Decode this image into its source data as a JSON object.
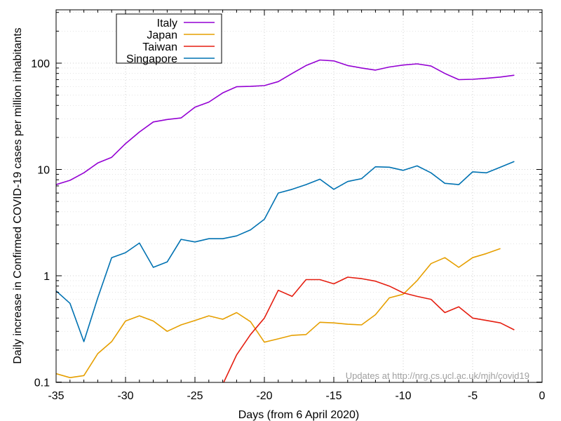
{
  "chart_data": {
    "type": "line",
    "title": "",
    "xlabel": "Days (from 6 April 2020)",
    "ylabel": "Daily increase in Confirmed COVID-19 cases per million inhabitants",
    "xlim": [
      -35,
      0
    ],
    "ylim": [
      0.1,
      300
    ],
    "yscale": "log",
    "grid": true,
    "legend_position": "top-left",
    "xticks": [
      "-35",
      "-30",
      "-25",
      "-20",
      "-15",
      "-10",
      "-5",
      "0"
    ],
    "yticks": [
      "0.1",
      "1",
      "10",
      "100"
    ],
    "annotation": "Updates at http://nrg.cs.ucl.ac.uk/mjh/covid19",
    "series": [
      {
        "name": "Italy",
        "color": "#9400d3",
        "x": [
          -35,
          -34,
          -33,
          -32,
          -31,
          -30,
          -29,
          -28,
          -27,
          -26,
          -25,
          -24,
          -23,
          -22,
          -21,
          -20,
          -19,
          -18,
          -17,
          -16,
          -15,
          -14,
          -13,
          -12,
          -11,
          -10,
          -9,
          -8,
          -7,
          -6,
          -5,
          -4,
          -3,
          -2
        ],
        "y": [
          7.2,
          7.9,
          9.3,
          11.5,
          13.0,
          17.5,
          22.5,
          28.0,
          29.5,
          30.5,
          38.5,
          43.0,
          52.5,
          60.0,
          60.5,
          61.5,
          67.0,
          80.0,
          95.0,
          107.0,
          105.0,
          95.0,
          90.0,
          86.0,
          92.0,
          96.0,
          98.5,
          94.0,
          80.0,
          70.0,
          70.5,
          72.0,
          74.0,
          77.0
        ]
      },
      {
        "name": "Japan",
        "color": "#e69f00",
        "x": [
          -35,
          -34,
          -33,
          -32,
          -31,
          -30,
          -29,
          -28,
          -27,
          -26,
          -25,
          -24,
          -23,
          -22,
          -21,
          -20,
          -19,
          -18,
          -17,
          -16,
          -15,
          -14,
          -13,
          -12,
          -11,
          -10,
          -9,
          -8,
          -7,
          -6,
          -5,
          -4,
          -3
        ],
        "y": [
          0.12,
          0.11,
          0.115,
          0.185,
          0.24,
          0.375,
          0.42,
          0.375,
          0.3,
          0.345,
          0.38,
          0.42,
          0.39,
          0.45,
          0.37,
          0.237,
          0.255,
          0.275,
          0.28,
          0.365,
          0.36,
          0.35,
          0.345,
          0.43,
          0.62,
          0.67,
          0.9,
          1.3,
          1.48,
          1.2,
          1.48,
          1.62,
          1.8
        ]
      },
      {
        "name": "Taiwan",
        "color": "#e51e10",
        "x": [
          -23,
          -22,
          -21,
          -20,
          -19,
          -18,
          -17,
          -16,
          -15,
          -14,
          -13,
          -12,
          -11,
          -10,
          -9,
          -8,
          -7,
          -6,
          -5,
          -4,
          -3,
          -2
        ],
        "y": [
          0.095,
          0.18,
          0.28,
          0.4,
          0.73,
          0.64,
          0.92,
          0.92,
          0.84,
          0.97,
          0.94,
          0.89,
          0.8,
          0.69,
          0.64,
          0.6,
          0.45,
          0.51,
          0.4,
          0.38,
          0.36,
          0.31
        ]
      },
      {
        "name": "Singapore",
        "color": "#0072b2",
        "x": [
          -35,
          -34,
          -33,
          -32,
          -31,
          -30,
          -29,
          -28,
          -27,
          -26,
          -25,
          -24,
          -23,
          -22,
          -21,
          -20,
          -19,
          -18,
          -17,
          -16,
          -15,
          -14,
          -13,
          -12,
          -11,
          -10,
          -9,
          -8,
          -7,
          -6,
          -5,
          -4,
          -3,
          -2
        ],
        "y": [
          0.72,
          0.55,
          0.24,
          0.62,
          1.48,
          1.65,
          2.03,
          1.2,
          1.35,
          2.2,
          2.08,
          2.23,
          2.23,
          2.37,
          2.7,
          3.4,
          6.0,
          6.5,
          7.2,
          8.1,
          6.5,
          7.7,
          8.2,
          10.6,
          10.5,
          9.8,
          10.8,
          9.3,
          7.4,
          7.2,
          9.5,
          9.3,
          10.5,
          11.9
        ]
      }
    ]
  }
}
